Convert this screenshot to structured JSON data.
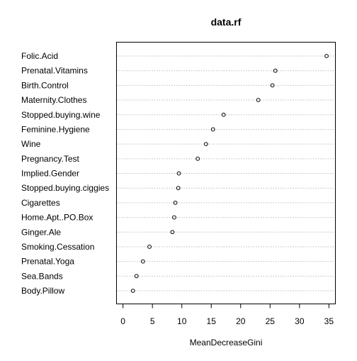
{
  "chart_data": {
    "type": "dotplot",
    "title": "data.rf",
    "xlabel": "MeanDecreaseGini",
    "ylabel": "",
    "xlim": [
      -1.1,
      36.1
    ],
    "xticks": [
      0,
      5,
      10,
      15,
      20,
      25,
      30,
      35
    ],
    "grid": "horizontal dotted",
    "categories": [
      "Folic.Acid",
      "Prenatal.Vitamins",
      "Birth.Control",
      "Maternity.Clothes",
      "Stopped.buying.wine",
      "Feminine.Hygiene",
      "Wine",
      "Pregnancy.Test",
      "Implied.Gender",
      "Stopped.buying.ciggies",
      "Cigarettes",
      "Home.Apt..PO.Box",
      "Ginger.Ale",
      "Smoking.Cessation",
      "Prenatal.Yoga",
      "Sea.Bands",
      "Body.Pillow"
    ],
    "values": [
      34.6,
      25.9,
      25.4,
      23.0,
      17.1,
      15.3,
      14.1,
      12.7,
      9.5,
      9.4,
      8.9,
      8.7,
      8.4,
      4.5,
      3.4,
      2.3,
      1.7
    ],
    "colors": {
      "point_stroke": "#000000",
      "grid": "#bebebe",
      "axis": "#000000"
    }
  }
}
